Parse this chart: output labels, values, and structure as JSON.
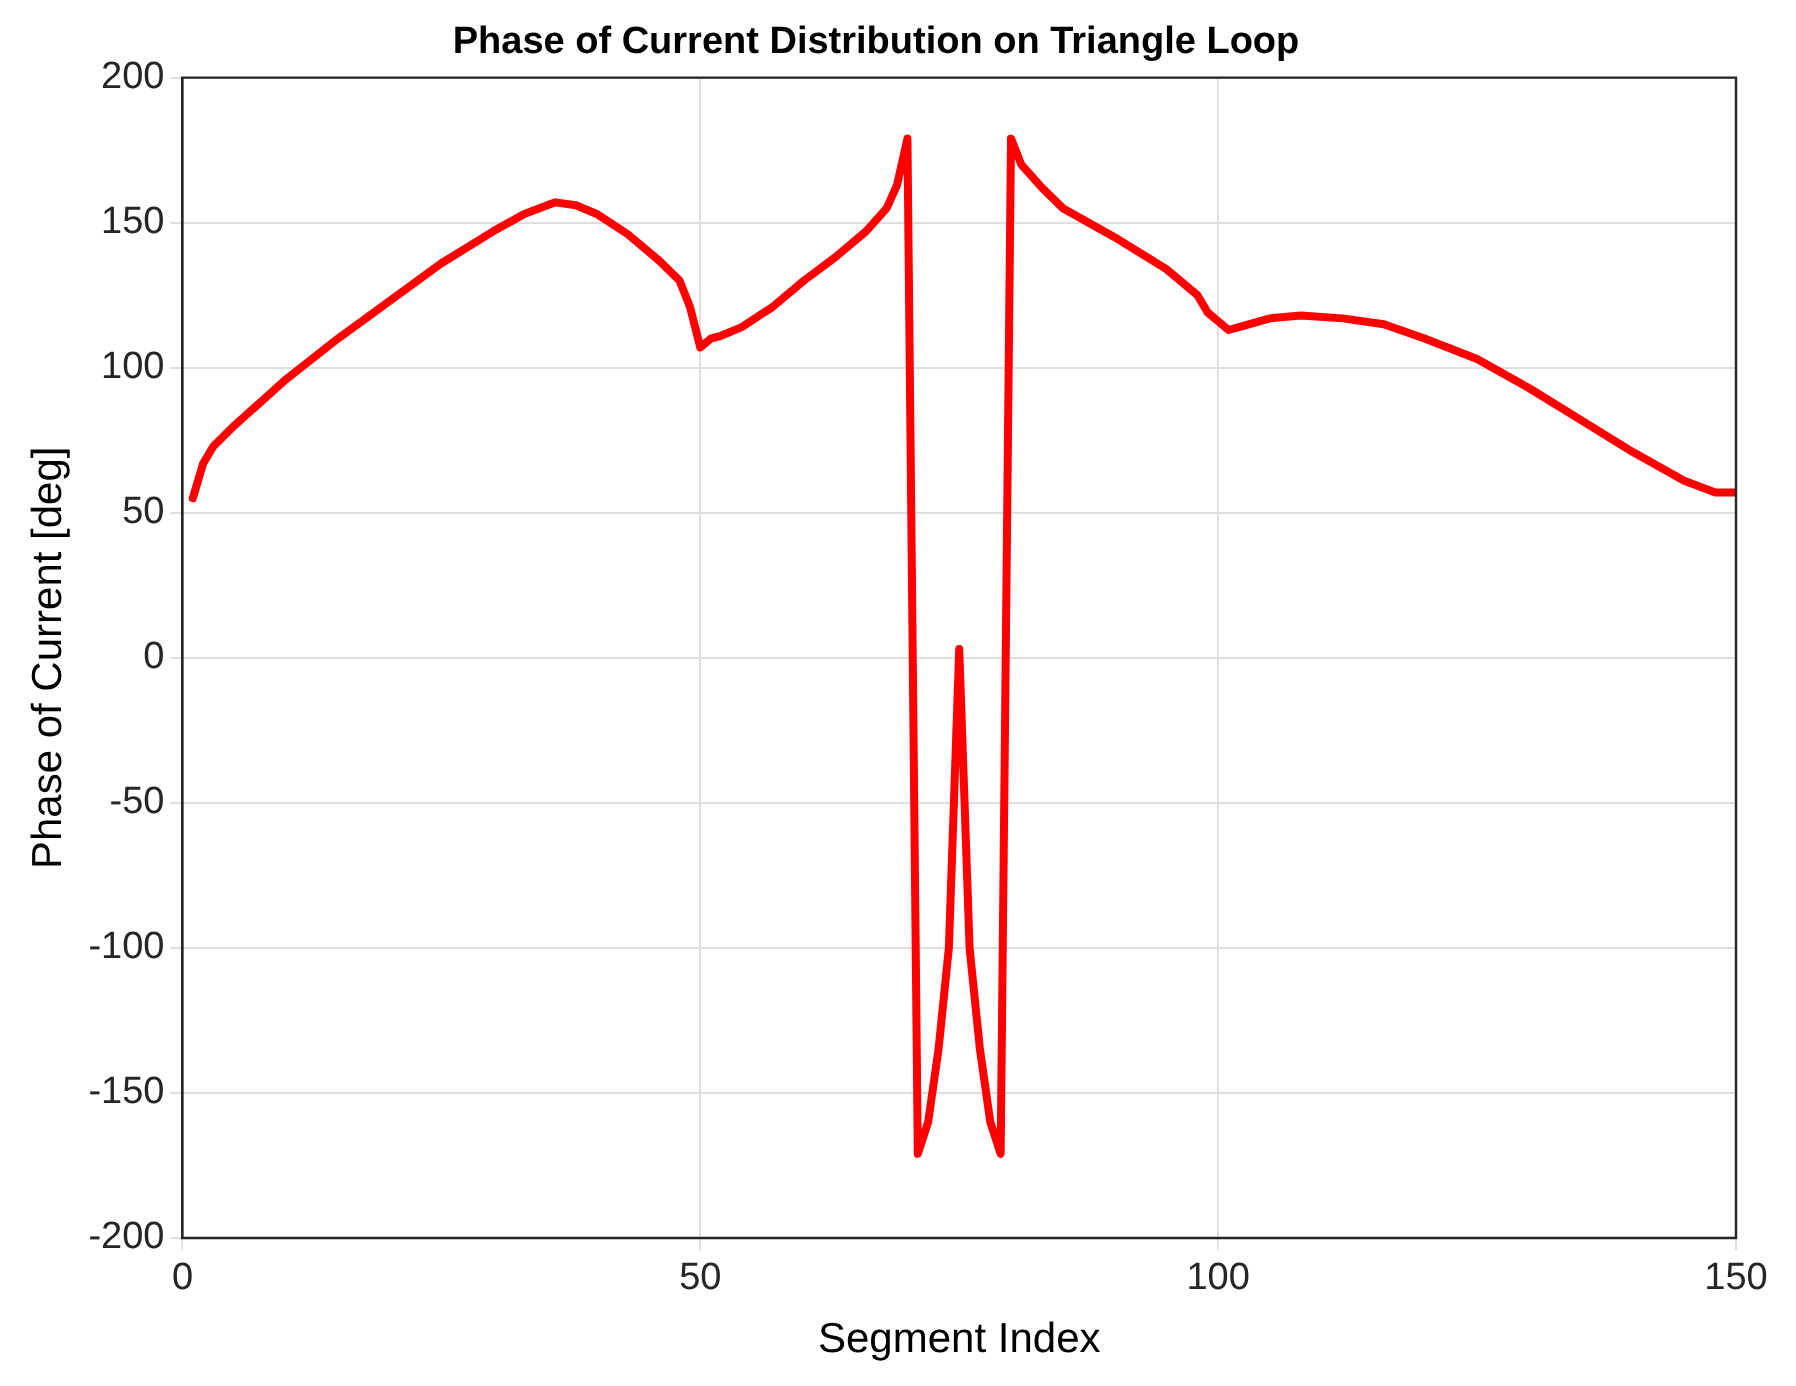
{
  "chart_data": {
    "type": "line",
    "title": "Phase of Current Distribution on Triangle Loop",
    "xlabel": "Segment Index",
    "ylabel": "Phase of Current [deg]",
    "x": [
      1,
      2,
      3,
      5,
      10,
      15,
      20,
      25,
      30,
      33,
      36,
      38,
      40,
      43,
      46,
      48,
      49,
      50,
      51,
      52,
      54,
      57,
      60,
      63,
      66,
      68,
      69,
      70,
      71,
      72,
      73,
      74,
      75,
      76,
      77,
      78,
      79,
      80,
      81,
      83,
      85,
      90,
      95,
      98,
      99,
      100,
      101,
      102,
      105,
      108,
      112,
      116,
      120,
      125,
      130,
      135,
      140,
      145,
      148,
      150
    ],
    "series": [
      {
        "color": "#ff0000",
        "values": [
          55,
          67,
          73,
          80,
          96,
          110,
          123,
          136,
          147,
          153,
          157,
          156,
          153,
          146,
          137,
          130,
          121,
          107,
          110,
          111,
          114,
          121,
          130,
          138,
          147,
          155,
          163,
          179,
          -171,
          -160,
          -135,
          -100,
          3,
          -100,
          -135,
          -160,
          -171,
          179,
          170,
          162,
          155,
          145,
          134,
          125,
          119,
          116,
          113,
          114,
          117,
          118,
          117,
          115,
          110,
          103,
          93,
          82,
          71,
          61,
          57,
          57
        ]
      }
    ],
    "xlim": [
      0,
      150
    ],
    "xticks": [
      0,
      50,
      100,
      150
    ],
    "ylim": [
      -200,
      200
    ],
    "yticks": [
      -200,
      -150,
      -100,
      -50,
      0,
      50,
      100,
      150,
      200
    ],
    "grid": true,
    "legend": false,
    "marker": "none",
    "line_style": "solid"
  }
}
